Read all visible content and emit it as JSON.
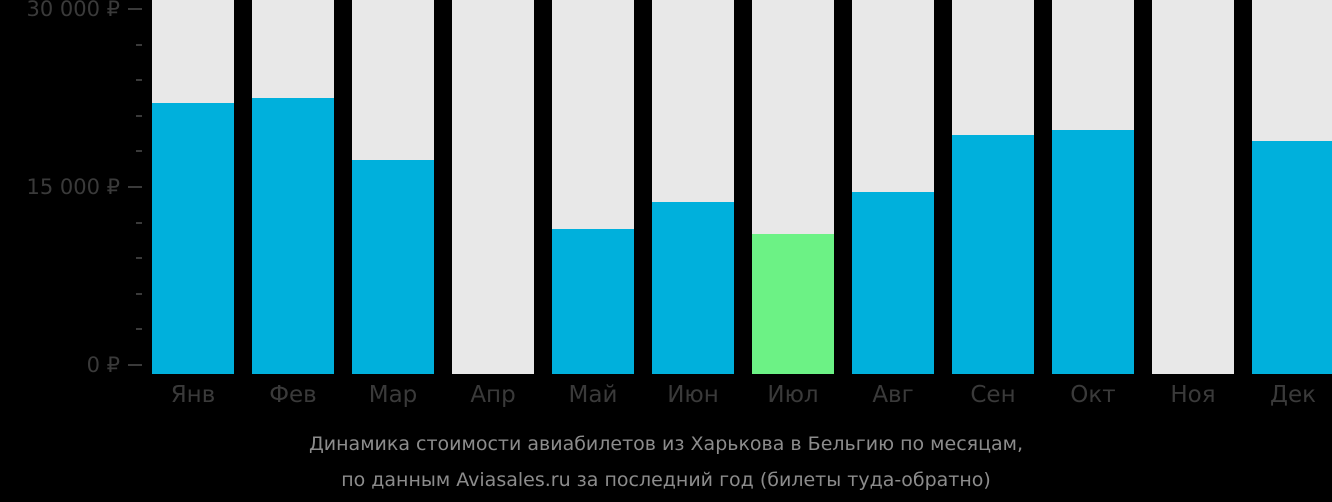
{
  "chart_data": {
    "type": "bar",
    "title": "Динамика стоимости авиабилетов из Харькова в Бельгию по месяцам, по данным Aviasales.ru за последний год (билеты туда-обратно)",
    "xlabel": "",
    "ylabel": "",
    "categories": [
      "Янв",
      "Фев",
      "Мар",
      "Апр",
      "Май",
      "Июн",
      "Июл",
      "Авг",
      "Сен",
      "Окт",
      "Ноя",
      "Дек"
    ],
    "values": [
      22100,
      22500,
      17300,
      null,
      11500,
      13700,
      11000,
      14600,
      19400,
      19800,
      null,
      18900
    ],
    "ylim": [
      0,
      30000
    ],
    "yticks": [
      0,
      15000,
      30000
    ],
    "ytick_labels": [
      "0 ₽",
      "15 000 ₽",
      "30 000 ₽"
    ],
    "minor_ticks_per_interval": 4,
    "grid": false,
    "legend": null,
    "highlight": {
      "category": "Июл",
      "meaning": "lowest price",
      "color": "#6cf285"
    },
    "colors": {
      "bar": "#00b0dc",
      "background_column": "#e8e8e8",
      "lowest": "#6cf285",
      "page_background": "#000000"
    }
  },
  "caption": {
    "line1": "Динамика стоимости авиабилетов из Харькова в Бельгию по месяцам,",
    "line2": "по данным Aviasales.ru за последний год (билеты туда-обратно)"
  }
}
